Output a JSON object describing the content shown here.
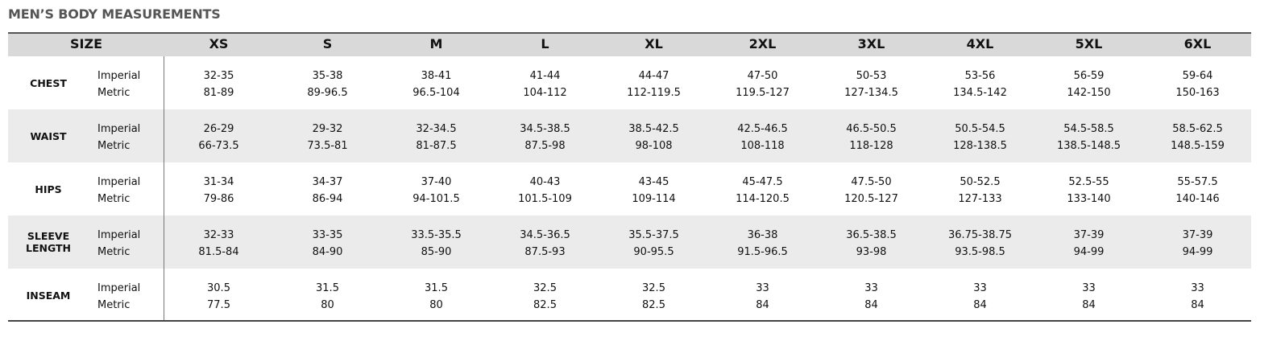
{
  "title": "MEN’S BODY MEASUREMENTS",
  "table": {
    "header": {
      "label": "SIZE",
      "sizes": [
        "XS",
        "S",
        "M",
        "L",
        "XL",
        "2XL",
        "3XL",
        "4XL",
        "5XL",
        "6XL"
      ]
    },
    "rows": [
      {
        "label": "CHEST",
        "units": [
          "Imperial",
          "Metric"
        ],
        "values": [
          [
            "32-35",
            "35-38",
            "38-41",
            "41-44",
            "44-47",
            "47-50",
            "50-53",
            "53-56",
            "56-59",
            "59-64"
          ],
          [
            "81-89",
            "89-96.5",
            "96.5-104",
            "104-112",
            "112-119.5",
            "119.5-127",
            "127-134.5",
            "134.5-142",
            "142-150",
            "150-163"
          ]
        ]
      },
      {
        "label": "WAIST",
        "units": [
          "Imperial",
          "Metric"
        ],
        "values": [
          [
            "26-29",
            "29-32",
            "32-34.5",
            "34.5-38.5",
            "38.5-42.5",
            "42.5-46.5",
            "46.5-50.5",
            "50.5-54.5",
            "54.5-58.5",
            "58.5-62.5"
          ],
          [
            "66-73.5",
            "73.5-81",
            "81-87.5",
            "87.5-98",
            "98-108",
            "108-118",
            "118-128",
            "128-138.5",
            "138.5-148.5",
            "148.5-159"
          ]
        ]
      },
      {
        "label": "HIPS",
        "units": [
          "Imperial",
          "Metric"
        ],
        "values": [
          [
            "31-34",
            "34-37",
            "37-40",
            "40-43",
            "43-45",
            "45-47.5",
            "47.5-50",
            "50-52.5",
            "52.5-55",
            "55-57.5"
          ],
          [
            "79-86",
            "86-94",
            "94-101.5",
            "101.5-109",
            "109-114",
            "114-120.5",
            "120.5-127",
            "127-133",
            "133-140",
            "140-146"
          ]
        ]
      },
      {
        "label": "SLEEVE LENGTH",
        "units": [
          "Imperial",
          "Metric"
        ],
        "values": [
          [
            "32-33",
            "33-35",
            "33.5-35.5",
            "34.5-36.5",
            "35.5-37.5",
            "36-38",
            "36.5-38.5",
            "36.75-38.75",
            "37-39",
            "37-39"
          ],
          [
            "81.5-84",
            "84-90",
            "85-90",
            "87.5-93",
            "90-95.5",
            "91.5-96.5",
            "93-98",
            "93.5-98.5",
            "94-99",
            "94-99"
          ]
        ]
      },
      {
        "label": "INSEAM",
        "units": [
          "Imperial",
          "Metric"
        ],
        "values": [
          [
            "30.5",
            "31.5",
            "31.5",
            "32.5",
            "32.5",
            "33",
            "33",
            "33",
            "33",
            "33"
          ],
          [
            "77.5",
            "80",
            "80",
            "82.5",
            "82.5",
            "84",
            "84",
            "84",
            "84",
            "84"
          ]
        ]
      }
    ]
  }
}
